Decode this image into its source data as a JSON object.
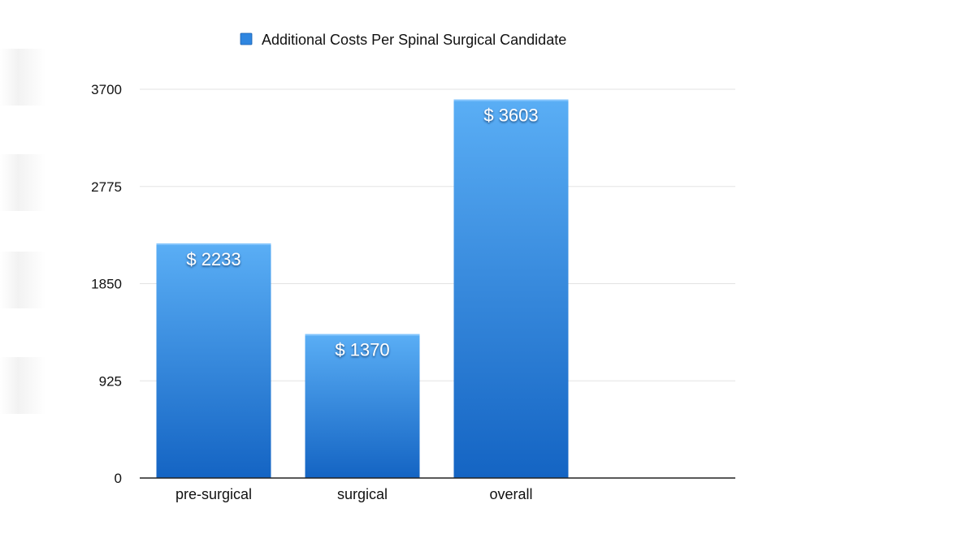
{
  "chart_data": {
    "type": "bar",
    "categories": [
      "pre-surgical",
      "surgical",
      "overall"
    ],
    "series": [
      {
        "name": "Additional Costs Per Spinal Surgical Candidate",
        "values": [
          2233,
          1370,
          3603
        ],
        "data_labels": [
          "$ 2233",
          "$ 1370",
          "$ 3603"
        ]
      }
    ],
    "title": "",
    "xlabel": "",
    "ylabel": "",
    "ylim": [
      0,
      3700
    ],
    "yticks": [
      0,
      925,
      1850,
      2775,
      3700
    ],
    "ytick_labels": [
      "0",
      "925",
      "1850",
      "2775",
      "3700"
    ],
    "grid": true,
    "legend_position": "top",
    "colors": {
      "bar_top": "#5AAEF5",
      "bar_bottom": "#1464C3",
      "grid": "#e3e3e3",
      "axis": "#222222",
      "text": "#111111",
      "legend_swatch": "#2f86e0"
    }
  }
}
